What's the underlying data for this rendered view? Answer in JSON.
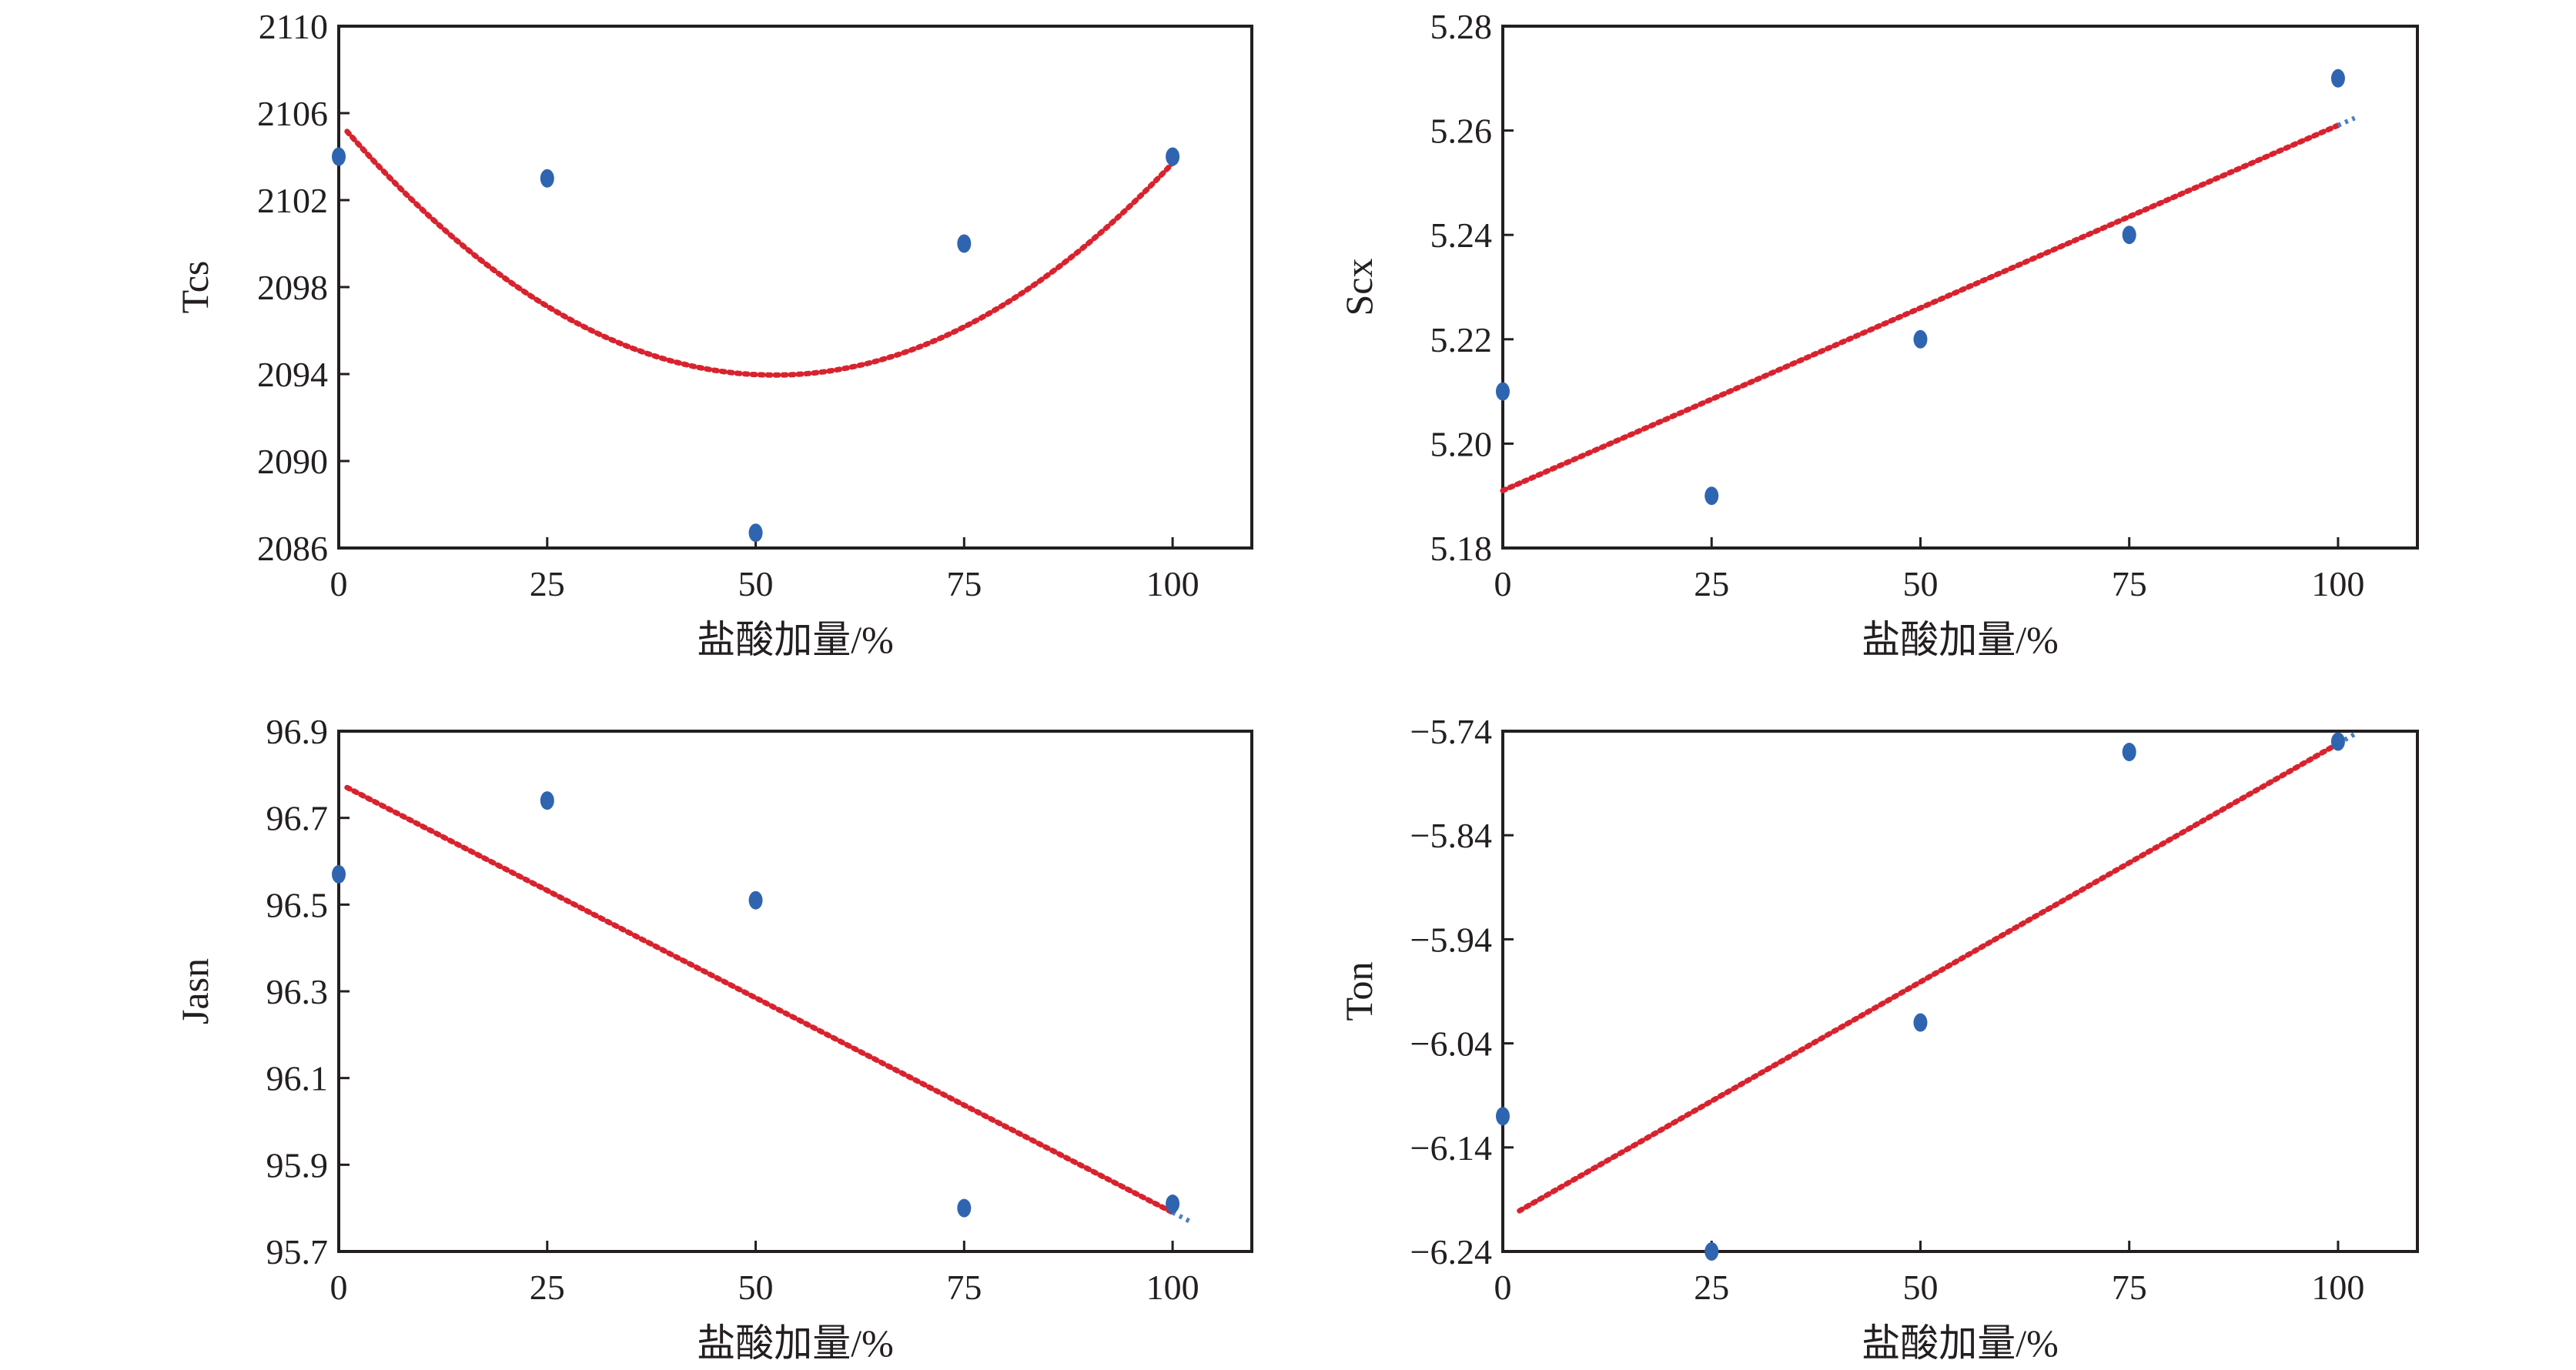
{
  "colors": {
    "points": "#2f65b0",
    "fit": "#d8232f",
    "fit_tail": "#4a7fc0",
    "axis": "#231f20"
  },
  "chart_data": [
    {
      "type": "scatter",
      "ylabel": "Tcs",
      "xlabel": "盐酸加量/%",
      "xlim": [
        0,
        109.5
      ],
      "ylim": [
        2086,
        2110
      ],
      "xticks": [
        "0",
        "25",
        "50",
        "75",
        "100"
      ],
      "yticks": [
        "2086",
        "2090",
        "2094",
        "2098",
        "2102",
        "2106",
        "2110"
      ],
      "points": {
        "x": [
          0,
          25,
          50,
          75,
          100
        ],
        "y": [
          2104,
          2103,
          2086.7,
          2100,
          2104
        ]
      },
      "fit": {
        "kind": "quadratic",
        "x_range": [
          1,
          100
        ],
        "coef": [
          2105.6,
          -0.446,
          0.00427
        ]
      }
    },
    {
      "type": "scatter",
      "ylabel": "Scx",
      "xlabel": "盐酸加量/%",
      "xlim": [
        0,
        109.5
      ],
      "ylim": [
        5.18,
        5.28
      ],
      "xticks": [
        "0",
        "25",
        "50",
        "75",
        "100"
      ],
      "yticks": [
        "5.18",
        "5.20",
        "5.22",
        "5.24",
        "5.26",
        "5.28"
      ],
      "points": {
        "x": [
          0,
          25,
          50,
          75,
          100
        ],
        "y": [
          5.21,
          5.19,
          5.22,
          5.24,
          5.27
        ]
      },
      "fit": {
        "kind": "linear",
        "x_range": [
          0,
          102
        ],
        "coef": [
          5.191,
          0.0007
        ]
      }
    },
    {
      "type": "scatter",
      "ylabel": "Jasn",
      "xlabel": "盐酸加量/%",
      "xlim": [
        0,
        109.5
      ],
      "ylim": [
        95.7,
        96.9
      ],
      "xticks": [
        "0",
        "25",
        "50",
        "75",
        "100"
      ],
      "yticks": [
        "95.7",
        "95.9",
        "96.1",
        "96.3",
        "96.5",
        "96.7",
        "96.9"
      ],
      "points": {
        "x": [
          0,
          25,
          50,
          75,
          100
        ],
        "y": [
          96.57,
          96.74,
          96.51,
          95.8,
          95.81
        ]
      },
      "fit": {
        "kind": "linear",
        "x_range": [
          1,
          102
        ],
        "coef": [
          96.78,
          -0.0099
        ]
      }
    },
    {
      "type": "scatter",
      "ylabel": "Ton",
      "xlabel": "盐酸加量/%",
      "xlim": [
        0,
        109.5
      ],
      "ylim": [
        -6.24,
        -5.74
      ],
      "xticks": [
        "0",
        "25",
        "50",
        "75",
        "100"
      ],
      "yticks": [
        "−6.24",
        "−6.14",
        "−6.04",
        "−5.94",
        "−5.84",
        "−5.74"
      ],
      "points": {
        "x": [
          0,
          25,
          50,
          75,
          100
        ],
        "y": [
          -6.11,
          -6.24,
          -6.02,
          -5.76,
          -5.75
        ]
      },
      "fit": {
        "kind": "linear",
        "x_range": [
          2,
          102
        ],
        "coef": [
          -6.21,
          0.00458
        ]
      }
    }
  ]
}
